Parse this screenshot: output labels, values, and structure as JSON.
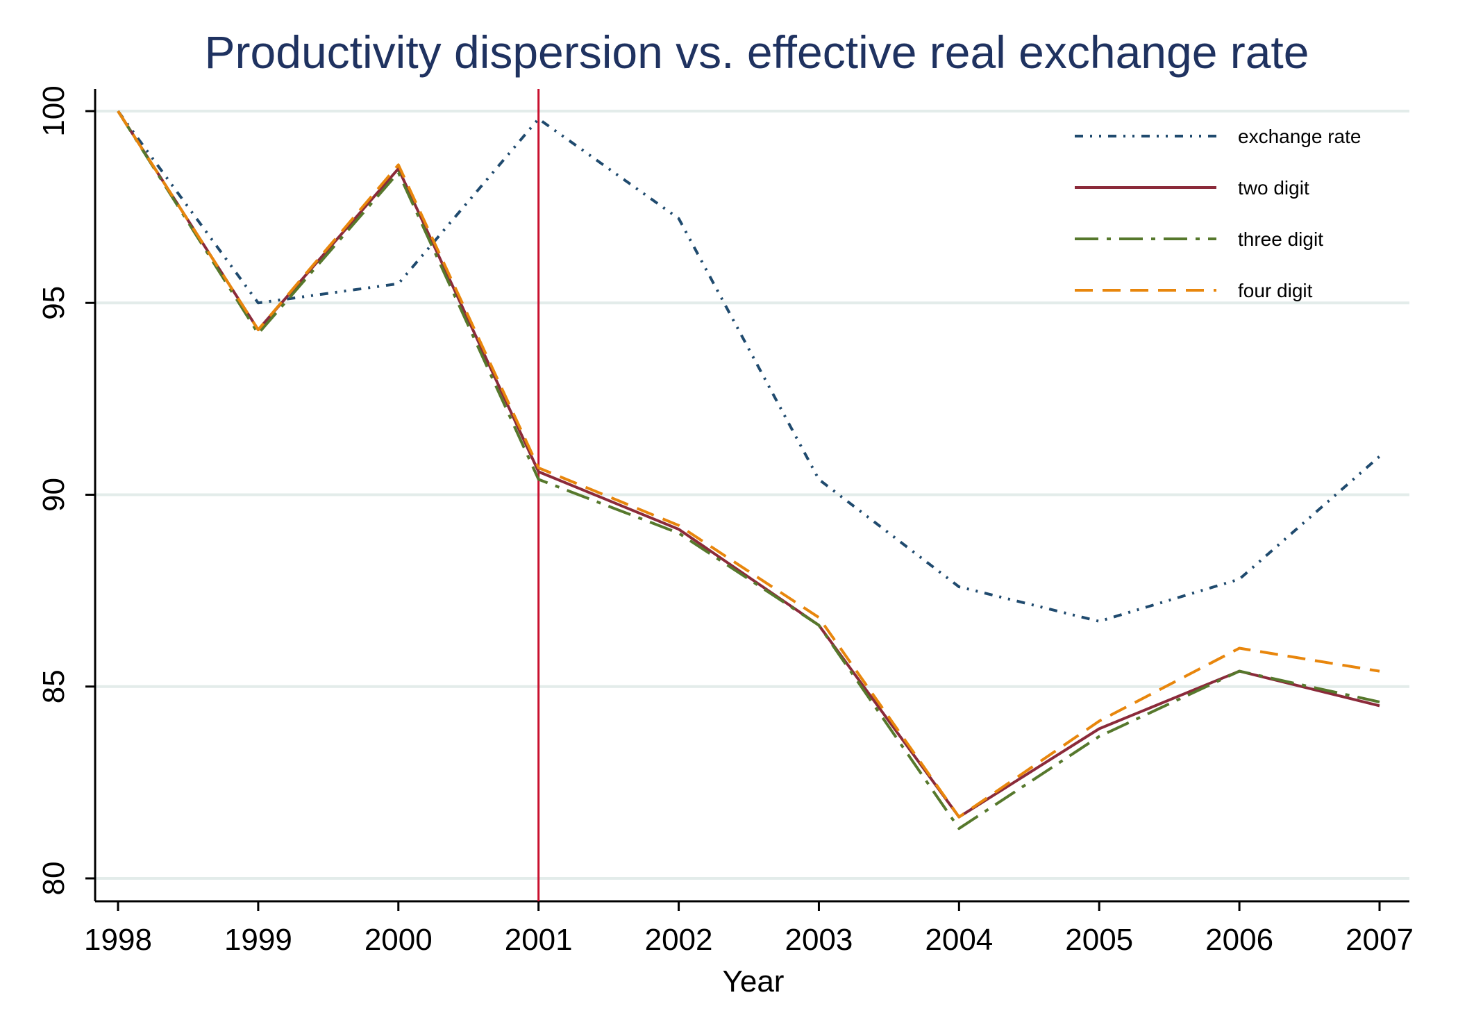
{
  "chart_data": {
    "type": "line",
    "title": "Productivity dispersion vs. effective real exchange rate",
    "xlabel": "Year",
    "ylabel": "",
    "x": [
      1998,
      1999,
      2000,
      2001,
      2002,
      2003,
      2004,
      2005,
      2006,
      2007
    ],
    "xlim": [
      1997.84,
      2007.16
    ],
    "ylim": [
      79.4,
      100.6
    ],
    "yticks": [
      80,
      85,
      90,
      95,
      100
    ],
    "grid": true,
    "legend_position": "top-right",
    "reference_line": {
      "x": 2001,
      "color": "#c8102e"
    },
    "series": [
      {
        "name": "exchange rate",
        "color": "#1f4a6e",
        "style": "dash-dot-dot",
        "values": [
          100.0,
          95.0,
          95.5,
          99.8,
          97.2,
          90.4,
          87.6,
          86.7,
          87.8,
          91.0
        ]
      },
      {
        "name": "two digit",
        "color": "#8b2a3a",
        "style": "solid",
        "values": [
          100.0,
          94.3,
          98.5,
          90.6,
          89.1,
          86.6,
          81.6,
          83.9,
          85.4,
          84.5
        ]
      },
      {
        "name": "three digit",
        "color": "#56782c",
        "style": "long-dash-dot",
        "values": [
          100.0,
          94.2,
          98.4,
          90.4,
          89.0,
          86.6,
          81.3,
          83.7,
          85.4,
          84.6
        ]
      },
      {
        "name": "four digit",
        "color": "#e8860c",
        "style": "dashed",
        "values": [
          100.0,
          94.3,
          98.6,
          90.7,
          89.2,
          86.8,
          81.6,
          84.1,
          86.0,
          85.4
        ]
      }
    ]
  },
  "colors": {
    "title": "#1f3260",
    "grid": "#e3ecea",
    "axis": "#000000"
  }
}
